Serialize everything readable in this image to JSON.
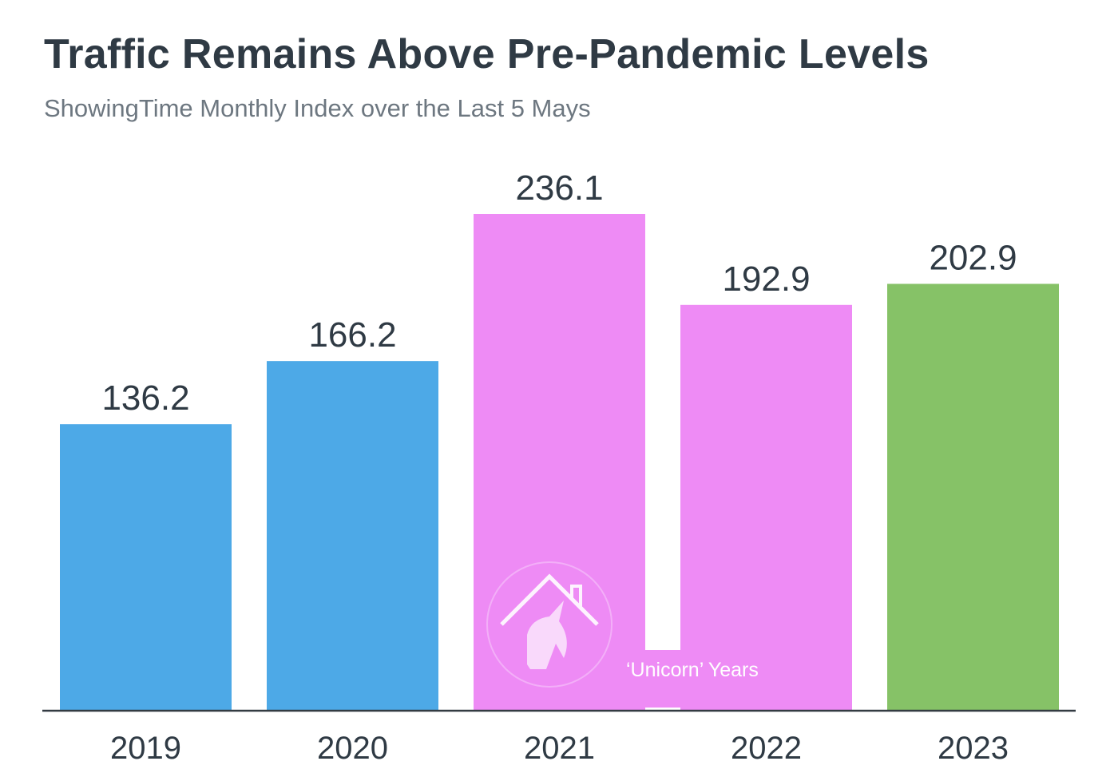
{
  "chart_data": {
    "type": "bar",
    "title": "Traffic Remains Above Pre-Pandemic Levels",
    "subtitle": "ShowingTime Monthly Index over the Last 5 Mays",
    "xlabel": "",
    "ylabel": "",
    "categories": [
      "2019",
      "2020",
      "2021",
      "2022",
      "2023"
    ],
    "values": [
      136.2,
      166.2,
      236.1,
      192.9,
      202.9
    ],
    "value_labels": [
      "136.2",
      "166.2",
      "236.1",
      "192.9",
      "202.9"
    ],
    "bar_colors": [
      "#4da9e7",
      "#4da9e7",
      "#ee8bf5",
      "#ee8bf5",
      "#86c267"
    ],
    "ylim": [
      0,
      236.1
    ],
    "grid": false,
    "annotation": "‘Unicorn’ Years",
    "annotation_icon": "house-unicorn-icon"
  },
  "colors": {
    "text": "#2f3a44",
    "subtitle": "#6d7780",
    "axis": "#333b42"
  }
}
